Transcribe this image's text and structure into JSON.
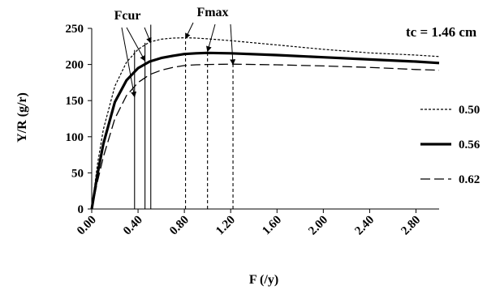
{
  "chart_data": {
    "type": "line",
    "xlabel": "F (/y)",
    "ylabel": "Y/R (g/r)",
    "xlim": [
      0,
      3.0
    ],
    "ylim": [
      0,
      250
    ],
    "x_ticks": [
      "0.00",
      "0.40",
      "0.80",
      "1.20",
      "1.60",
      "2.00",
      "2.40",
      "2.80"
    ],
    "y_ticks": [
      "0",
      "50",
      "100",
      "150",
      "200",
      "250"
    ],
    "grid": false,
    "legend_position": "right",
    "annotation_tc": "tc = 1.46 cm",
    "annotations": [
      {
        "text": "Fcur",
        "markers_x": [
          0.37,
          0.46,
          0.51
        ],
        "arrows_to": [
          [
            0.37,
            155
          ],
          [
            0.46,
            205
          ],
          [
            0.51,
            230
          ]
        ]
      },
      {
        "text": "Fmax",
        "markers_x": [
          0.81,
          1.0,
          1.22
        ],
        "arrows_to": [
          [
            0.81,
            236
          ],
          [
            1.0,
            218
          ],
          [
            1.22,
            200
          ]
        ]
      }
    ],
    "series": [
      {
        "name": "0.50",
        "style": "dotted",
        "x": [
          0,
          0.05,
          0.1,
          0.2,
          0.3,
          0.4,
          0.5,
          0.6,
          0.7,
          0.81,
          0.9,
          1.0,
          1.2,
          1.6,
          2.0,
          2.4,
          2.8,
          3.0
        ],
        "y": [
          0,
          62,
          110,
          170,
          203,
          221,
          231,
          235,
          236.5,
          237,
          236.5,
          235.5,
          233,
          227,
          221,
          216,
          213,
          211
        ]
      },
      {
        "name": "0.56",
        "style": "solid",
        "x": [
          0,
          0.05,
          0.1,
          0.2,
          0.3,
          0.4,
          0.5,
          0.6,
          0.7,
          0.8,
          0.9,
          1.0,
          1.2,
          1.6,
          2.0,
          2.4,
          2.8,
          3.0
        ],
        "y": [
          0,
          48,
          90,
          148,
          178,
          195,
          204,
          209,
          212,
          214.5,
          215.5,
          216,
          215.5,
          213,
          210,
          207,
          204,
          202
        ]
      },
      {
        "name": "0.62",
        "style": "dashed",
        "x": [
          0,
          0.05,
          0.1,
          0.2,
          0.3,
          0.4,
          0.5,
          0.6,
          0.7,
          0.8,
          0.9,
          1.0,
          1.22,
          1.6,
          2.0,
          2.4,
          2.8,
          3.0
        ],
        "y": [
          0,
          38,
          72,
          125,
          157,
          175,
          186,
          192,
          196,
          198.5,
          199.5,
          200,
          200.5,
          199.5,
          198,
          196,
          193,
          192
        ]
      }
    ]
  }
}
